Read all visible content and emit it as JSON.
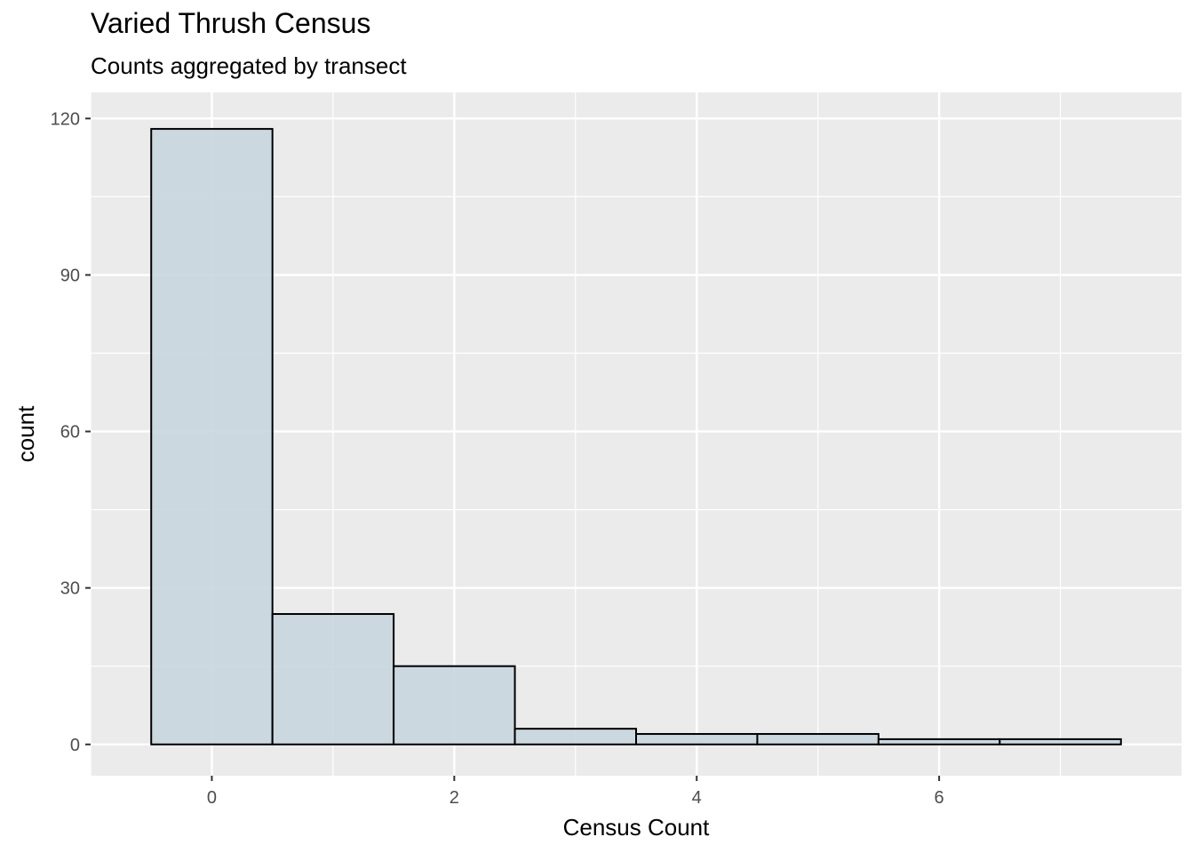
{
  "chart_data": {
    "type": "bar",
    "subtype": "histogram",
    "title": "Varied Thrush Census",
    "subtitle": "Counts aggregated by transect",
    "xlabel": "Census Count",
    "ylabel": "count",
    "bin_width": 1,
    "bins": [
      {
        "x": 0,
        "count": 118
      },
      {
        "x": 1,
        "count": 25
      },
      {
        "x": 2,
        "count": 15
      },
      {
        "x": 3,
        "count": 3
      },
      {
        "x": 4,
        "count": 2
      },
      {
        "x": 5,
        "count": 2
      },
      {
        "x": 6,
        "count": 1
      },
      {
        "x": 7,
        "count": 1
      }
    ],
    "xlim": [
      -1.0,
      8.0
    ],
    "ylim": [
      -6,
      125
    ],
    "xticks": [
      0,
      2,
      4,
      6
    ],
    "yticks": [
      0,
      30,
      60,
      90,
      120
    ],
    "grid": true,
    "colors": {
      "panel_background": "#EBEBEB",
      "grid": "#FFFFFF",
      "bar_fill": "#C9D6DF",
      "bar_outline": "#000000",
      "tick_label": "#4D4D4D"
    }
  }
}
